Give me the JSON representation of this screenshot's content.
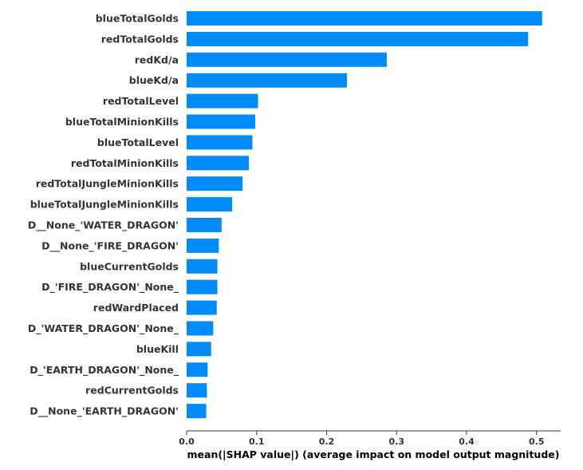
{
  "chart_data": {
    "type": "bar",
    "orientation": "horizontal",
    "categories": [
      "blueTotalGolds",
      "redTotalGolds",
      "redKd/a",
      "blueKd/a",
      "redTotalLevel",
      "blueTotalMinionKills",
      "blueTotalLevel",
      "redTotalMinionKills",
      "redTotalJungleMinionKills",
      "blueTotalJungleMinionKills",
      "D__None_'WATER_DRAGON'",
      "D__None_'FIRE_DRAGON'",
      "blueCurrentGolds",
      "D_'FIRE_DRAGON'_None_",
      "redWardPlaced",
      "D_'WATER_DRAGON'_None_",
      "blueKill",
      "D_'EARTH_DRAGON'_None_",
      "redCurrentGolds",
      "D__None_'EARTH_DRAGON'"
    ],
    "values": [
      0.508,
      0.488,
      0.286,
      0.229,
      0.102,
      0.098,
      0.094,
      0.089,
      0.08,
      0.065,
      0.05,
      0.046,
      0.044,
      0.044,
      0.043,
      0.038,
      0.035,
      0.03,
      0.029,
      0.028
    ],
    "title": "",
    "xlabel": "mean(|SHAP value|) (average impact on model output magnitude)",
    "ylabel": "",
    "xticks": [
      "0.0",
      "0.1",
      "0.2",
      "0.3",
      "0.4",
      "0.5"
    ],
    "xlim": [
      0,
      0.53
    ],
    "grid": false,
    "legend": "none",
    "colors": {
      "bar": "#008bfb",
      "text": "#333333",
      "axis": "#333333"
    }
  }
}
